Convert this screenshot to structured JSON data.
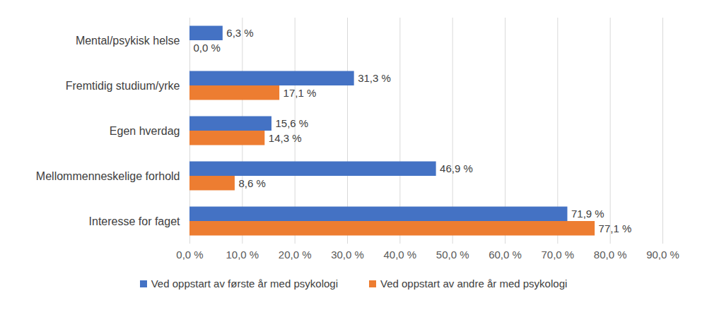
{
  "chart_data": {
    "type": "bar",
    "orientation": "horizontal",
    "categories": [
      "Mental/psykisk helse",
      "Fremtidig studium/yrke",
      "Egen hverdag",
      "Mellommenneskelige forhold",
      "Interesse for faget"
    ],
    "series": [
      {
        "name": "Ved oppstart av første år med psykologi",
        "color": "#4472c4",
        "values": [
          6.3,
          31.3,
          15.6,
          46.9,
          71.9
        ],
        "value_labels": [
          "6,3 %",
          "31,3 %",
          "15,6 %",
          "46,9 %",
          "71,9 %"
        ]
      },
      {
        "name": "Ved oppstart av andre år med psykologi",
        "color": "#ed7d31",
        "values": [
          0.0,
          17.1,
          14.3,
          8.6,
          77.1
        ],
        "value_labels": [
          "0,0 %",
          "17,1 %",
          "14,3 %",
          "8,6 %",
          "77,1 %"
        ]
      }
    ],
    "xlim": [
      0,
      90
    ],
    "xticks": [
      {
        "value": 0,
        "label": "0,0 %"
      },
      {
        "value": 10,
        "label": "10,0 %"
      },
      {
        "value": 20,
        "label": "20,0 %"
      },
      {
        "value": 30,
        "label": "30,0 %"
      },
      {
        "value": 40,
        "label": "40,0 %"
      },
      {
        "value": 50,
        "label": "50,0 %"
      },
      {
        "value": 60,
        "label": "60,0 %"
      },
      {
        "value": 70,
        "label": "70,0 %"
      },
      {
        "value": 80,
        "label": "80,0 %"
      },
      {
        "value": 90,
        "label": "90,0 %"
      }
    ],
    "grid": true,
    "data_labels": true,
    "legend": "bottom"
  }
}
